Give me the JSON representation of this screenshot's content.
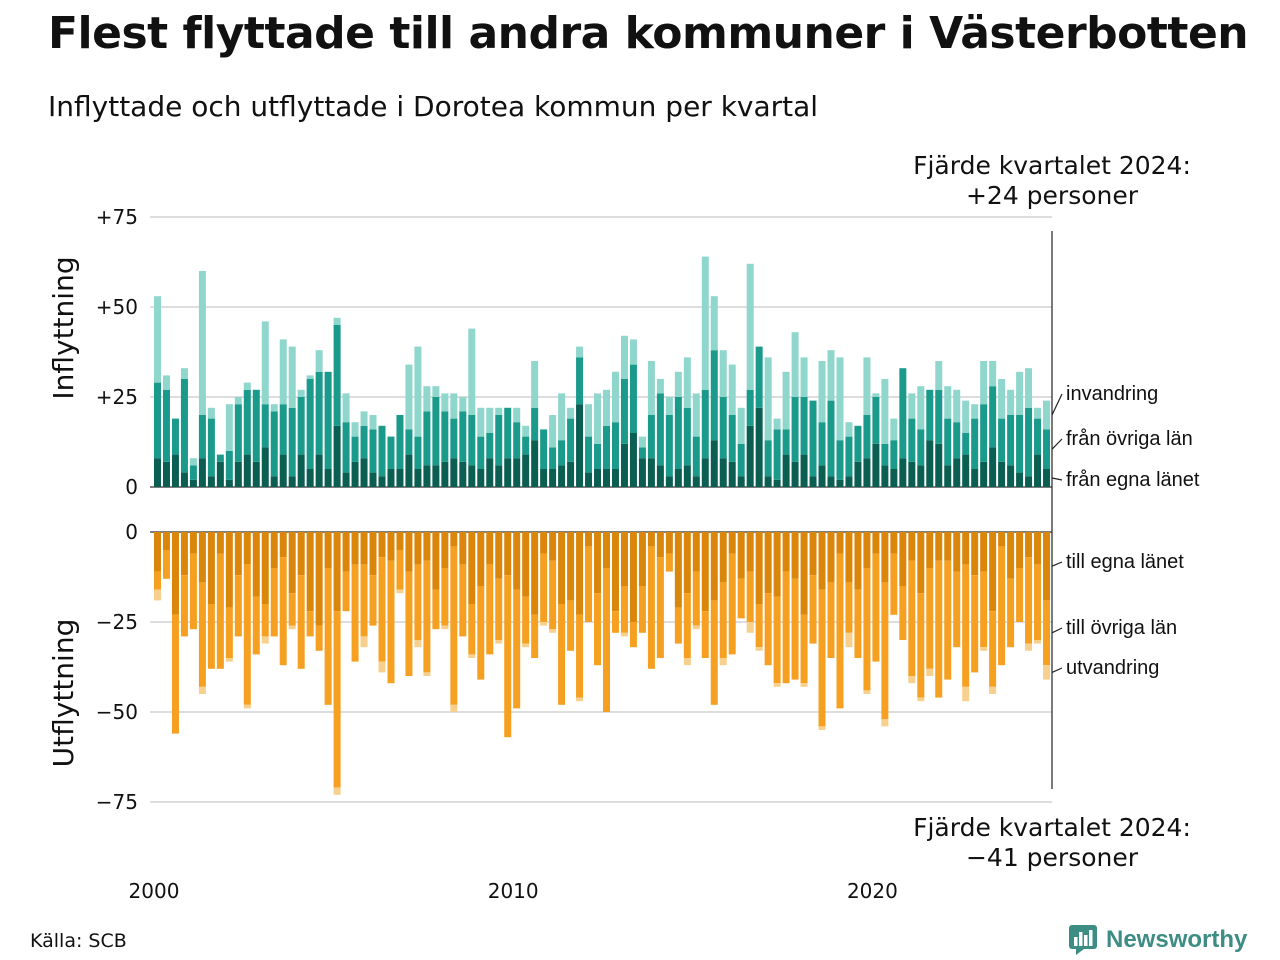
{
  "title": "Flest flyttade till andra kommuner i Västerbotten",
  "subtitle": "Inflyttade och utflyttade i Dorotea kommun per kvartal",
  "source": "Källa: SCB",
  "logo": {
    "text": "Newsworthy",
    "icon": "newsworthy-logo-icon",
    "color": "#3d8d84"
  },
  "callouts": {
    "top_line1": "Fjärde kvartalet 2024:",
    "top_line2": "+24 personer",
    "bottom_line1": "Fjärde kvartalet 2024:",
    "bottom_line2": "−41 personer"
  },
  "chart_data": {
    "type": "bar",
    "stacked": true,
    "colors": {
      "inflow_own_county": "#0b5e52",
      "inflow_other_counties": "#1a9a8a",
      "inflow_immigration": "#8fd6cc",
      "outflow_own_county": "#d9860a",
      "outflow_other_counties": "#f5a020",
      "outflow_emigration": "#f8d08e"
    },
    "x_axis": {
      "ticks": [
        "2000",
        "2010",
        "2020"
      ],
      "tick_years": [
        2000,
        2010,
        2020
      ],
      "range": [
        "2000 Q1",
        "2024 Q4"
      ]
    },
    "inflow_panel": {
      "ylabel": "Inflyttning",
      "ylim": [
        0,
        75
      ],
      "tick_values": [
        0,
        25,
        50,
        75
      ],
      "tick_labels": [
        "0",
        "+25",
        "+50",
        "+75"
      ],
      "legend_labels": [
        "invandring",
        "från övriga län",
        "från egna länet"
      ],
      "series": [
        {
          "name": "från egna länet",
          "values": [
            8,
            7,
            9,
            4,
            2,
            8,
            3,
            7,
            2,
            7,
            9,
            7,
            11,
            3,
            9,
            3,
            9,
            5,
            9,
            5,
            17,
            4,
            7,
            8,
            4,
            3,
            5,
            5,
            9,
            5,
            6,
            6,
            7,
            8,
            7,
            6,
            5,
            8,
            6,
            8,
            8,
            9,
            13,
            5,
            5,
            6,
            7,
            23,
            4,
            5,
            5,
            5,
            12,
            15,
            8,
            8,
            6,
            3,
            5,
            6,
            3,
            8,
            13,
            8,
            7,
            3,
            17,
            22,
            3,
            2,
            9,
            7,
            9,
            3,
            6,
            3,
            2,
            3,
            7,
            8,
            12,
            6,
            5,
            8,
            7,
            6,
            13,
            12,
            6,
            8,
            9,
            5,
            7,
            11,
            7,
            6,
            4,
            3,
            9,
            5
          ]
        },
        {
          "name": "från övriga län",
          "values": [
            21,
            20,
            10,
            26,
            4,
            12,
            16,
            2,
            8,
            16,
            18,
            20,
            12,
            18,
            14,
            19,
            16,
            25,
            23,
            27,
            28,
            14,
            7,
            9,
            12,
            14,
            9,
            15,
            7,
            9,
            15,
            19,
            14,
            11,
            14,
            14,
            9,
            7,
            14,
            14,
            10,
            5,
            9,
            11,
            6,
            7,
            12,
            13,
            10,
            7,
            12,
            13,
            18,
            19,
            3,
            12,
            20,
            17,
            20,
            16,
            11,
            19,
            25,
            17,
            13,
            9,
            10,
            17,
            10,
            14,
            7,
            18,
            16,
            21,
            12,
            21,
            11,
            11,
            10,
            12,
            13,
            6,
            8,
            25,
            12,
            10,
            14,
            15,
            13,
            10,
            6,
            14,
            16,
            17,
            12,
            14,
            16,
            19,
            10,
            11
          ]
        },
        {
          "name": "invandring",
          "values": [
            24,
            4,
            0,
            3,
            2,
            40,
            3,
            0,
            13,
            2,
            2,
            0,
            23,
            2,
            18,
            17,
            2,
            1,
            6,
            0,
            2,
            8,
            4,
            4,
            4,
            0,
            0,
            0,
            18,
            25,
            7,
            3,
            5,
            7,
            4,
            24,
            8,
            7,
            2,
            0,
            4,
            3,
            13,
            0,
            9,
            13,
            3,
            3,
            9,
            14,
            10,
            14,
            12,
            7,
            3,
            15,
            4,
            5,
            7,
            14,
            12,
            37,
            15,
            13,
            14,
            10,
            35,
            0,
            23,
            3,
            16,
            18,
            11,
            0,
            17,
            14,
            23,
            4,
            0,
            16,
            1,
            18,
            6,
            0,
            7,
            12,
            0,
            8,
            9,
            9,
            9,
            4,
            12,
            7,
            11,
            7,
            12,
            11,
            3,
            8
          ]
        }
      ]
    },
    "outflow_panel": {
      "ylabel": "Utflyttning",
      "ylim": [
        -75,
        0
      ],
      "tick_values": [
        0,
        -25,
        -50,
        -75
      ],
      "tick_labels": [
        "0",
        "−25",
        "−50",
        "−75"
      ],
      "legend_labels": [
        "till egna länet",
        "till övriga län",
        "utvandring"
      ],
      "series": [
        {
          "name": "till egna länet",
          "values": [
            -11,
            -5,
            -23,
            -12,
            -6,
            -14,
            -20,
            -6,
            -21,
            -12,
            -9,
            -18,
            -20,
            -10,
            -7,
            -17,
            -12,
            -22,
            -26,
            -10,
            -22,
            -11,
            -9,
            -9,
            -12,
            -7,
            -8,
            -5,
            -11,
            -9,
            -8,
            -16,
            -10,
            -4,
            -9,
            -20,
            -15,
            -9,
            -13,
            -12,
            -16,
            -18,
            -23,
            -6,
            -8,
            -20,
            -19,
            -23,
            -4,
            -17,
            -10,
            -22,
            -15,
            -25,
            -15,
            -4,
            -7,
            -6,
            -21,
            -17,
            -11,
            -22,
            -19,
            -14,
            -6,
            -13,
            -11,
            -20,
            -17,
            -18,
            -11,
            -13,
            -23,
            -12,
            -16,
            -14,
            -6,
            -14,
            -16,
            -10,
            -6,
            -14,
            -6,
            -15,
            -8,
            -17,
            -10,
            -8,
            -8,
            -11,
            -9,
            -12,
            -11,
            -22,
            -4,
            -13,
            -10,
            -7,
            -9,
            -19
          ]
        },
        {
          "name": "till övriga län",
          "values": [
            -5,
            -8,
            -33,
            -17,
            -21,
            -29,
            -18,
            -32,
            -14,
            -17,
            -39,
            -16,
            -9,
            -19,
            -30,
            -9,
            -26,
            -7,
            -7,
            -38,
            -49,
            -11,
            -27,
            -20,
            -14,
            -29,
            -34,
            -11,
            -29,
            -21,
            -31,
            -11,
            -16,
            -44,
            -20,
            -14,
            -26,
            -25,
            -17,
            -45,
            -33,
            -13,
            -12,
            -19,
            -19,
            -28,
            -14,
            -23,
            -21,
            -20,
            -40,
            -6,
            -13,
            -7,
            -13,
            -34,
            -28,
            -5,
            -10,
            -18,
            -15,
            -13,
            -29,
            -21,
            -28,
            -11,
            -14,
            -12,
            -20,
            -24,
            -31,
            -28,
            -19,
            -19,
            -38,
            -21,
            -43,
            -14,
            -19,
            -34,
            -30,
            -38,
            -17,
            -15,
            -32,
            -29,
            -28,
            -38,
            -33,
            -21,
            -34,
            -27,
            -21,
            -21,
            -33,
            -19,
            -15,
            -24,
            -21,
            -18
          ]
        },
        {
          "name": "utvandring",
          "values": [
            -3,
            0,
            0,
            0,
            0,
            -2,
            0,
            0,
            -1,
            0,
            -1,
            0,
            -2,
            0,
            0,
            -1,
            0,
            0,
            0,
            0,
            -2,
            0,
            0,
            -3,
            0,
            -3,
            0,
            -1,
            0,
            -2,
            -1,
            0,
            -1,
            -2,
            0,
            -1,
            0,
            0,
            -1,
            0,
            0,
            -1,
            0,
            -1,
            -1,
            0,
            0,
            -1,
            0,
            0,
            0,
            0,
            -1,
            0,
            0,
            0,
            0,
            0,
            0,
            -2,
            -1,
            0,
            0,
            -2,
            0,
            0,
            -3,
            -1,
            0,
            -1,
            0,
            0,
            -1,
            0,
            -1,
            0,
            0,
            -4,
            0,
            -1,
            0,
            -2,
            0,
            0,
            -2,
            -1,
            -2,
            0,
            0,
            0,
            -4,
            0,
            -1,
            -2,
            0,
            0,
            0,
            -2,
            -1,
            -4
          ]
        }
      ]
    },
    "annotations": [
      "Fjärde kvartalet 2024:",
      "+24 personer",
      "Fjärde kvartalet 2024:",
      "−41 personer"
    ]
  }
}
